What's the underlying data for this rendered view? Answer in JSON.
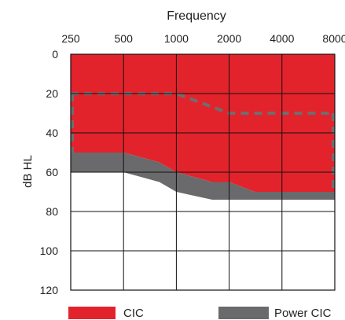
{
  "chart_data": {
    "type": "area",
    "title": "Frequency",
    "xlabel": "Frequency",
    "ylabel": "dB HL",
    "x_ticks": [
      250,
      500,
      1000,
      2000,
      4000,
      8000
    ],
    "x_tick_labels": [
      "250",
      "500",
      "1000",
      "2000",
      "4000",
      "8000"
    ],
    "y_ticks": [
      0,
      20,
      40,
      60,
      80,
      100,
      120
    ],
    "y_tick_labels": [
      "0",
      "20",
      "40",
      "60",
      "80",
      "100",
      "120"
    ],
    "xlim": [
      250,
      8000
    ],
    "ylim": [
      0,
      120
    ],
    "y_inverted": true,
    "x_scale": "log",
    "grid": true,
    "legend_position": "bottom",
    "series": [
      {
        "name": "CIC",
        "color": "#e3232c",
        "kind": "fill",
        "upper": {
          "x": [
            250,
            8000
          ],
          "y": [
            0,
            0
          ]
        },
        "lower": {
          "x": [
            250,
            500,
            800,
            1000,
            1600,
            2000,
            2800,
            8000
          ],
          "y": [
            50,
            50,
            55,
            60,
            65,
            65,
            70,
            70
          ]
        }
      },
      {
        "name": "Power CIC",
        "color": "#6a6a6c",
        "kind": "fill",
        "upper": {
          "x": [
            250,
            500,
            800,
            1000,
            1600,
            2000,
            2800,
            8000
          ],
          "y": [
            50,
            50,
            55,
            60,
            65,
            65,
            70,
            70
          ]
        },
        "lower": {
          "x": [
            250,
            500,
            800,
            1000,
            1600,
            8000
          ],
          "y": [
            60,
            60,
            65,
            70,
            74,
            74
          ]
        }
      },
      {
        "name": "",
        "color": "#6e6e70",
        "kind": "dashed",
        "x": [
          250,
          1000,
          2000,
          8000
        ],
        "y": [
          20,
          20,
          30,
          30
        ]
      }
    ],
    "legend": [
      {
        "label": "CIC",
        "color": "#e3232c"
      },
      {
        "label": "Power CIC",
        "color": "#6a6a6c"
      }
    ]
  }
}
